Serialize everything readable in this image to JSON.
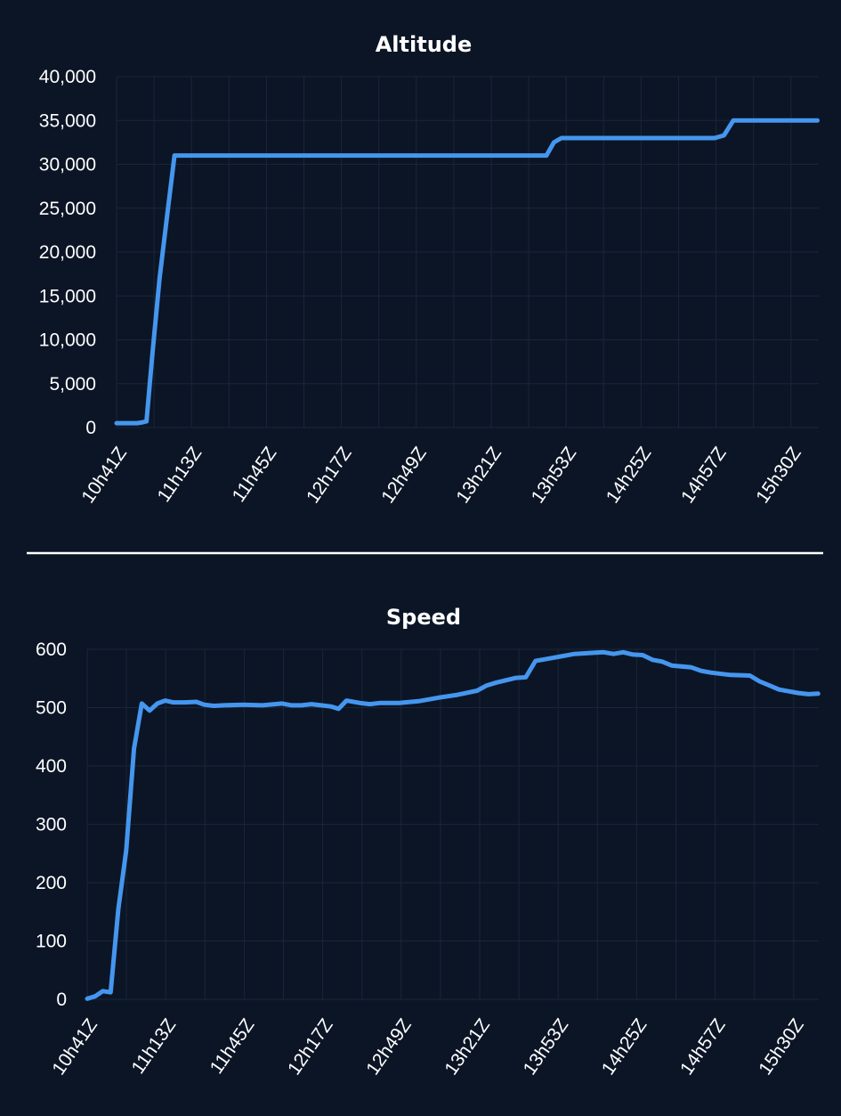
{
  "colors": {
    "background": "#0b1526",
    "line": "#4596ee",
    "grid": "#1a2638",
    "divider": "#ffffff",
    "text": "#ffffff"
  },
  "chart_data": [
    {
      "type": "line",
      "title": "Altitude",
      "xlabel": "",
      "ylabel": "",
      "ylim": [
        0,
        40000
      ],
      "yticks": [
        "0",
        "5,000",
        "10,000",
        "15,000",
        "20,000",
        "25,000",
        "30,000",
        "35,000",
        "40,000"
      ],
      "categories": [
        "10h41Z",
        "11h13Z",
        "11h45Z",
        "12h17Z",
        "12h49Z",
        "13h21Z",
        "13h53Z",
        "14h25Z",
        "14h57Z",
        "15h30Z"
      ],
      "grid": true,
      "series": [
        {
          "values": [
            [
              0,
              500
            ],
            [
              1.1,
              500
            ],
            [
              1.4,
              600
            ],
            [
              1.6,
              700
            ],
            [
              1.9,
              8000
            ],
            [
              2.3,
              17000
            ],
            [
              2.75,
              25000
            ],
            [
              3.1,
              31000
            ],
            [
              3.5,
              31000
            ],
            [
              5,
              31000
            ],
            [
              8,
              31000
            ],
            [
              11,
              31000
            ],
            [
              14,
              31000
            ],
            [
              17,
              31000
            ],
            [
              20,
              31000
            ],
            [
              22,
              31000
            ],
            [
              23,
              31000
            ],
            [
              23.4,
              32500
            ],
            [
              23.8,
              33000
            ],
            [
              25,
              33000
            ],
            [
              28,
              33000
            ],
            [
              30,
              33000
            ],
            [
              31.5,
              33000
            ],
            [
              32,
              33000
            ],
            [
              32.5,
              33300
            ],
            [
              33,
              35000
            ],
            [
              34,
              35000
            ],
            [
              36,
              35000
            ],
            [
              37.5,
              35000
            ]
          ]
        }
      ]
    },
    {
      "type": "line",
      "title": "Speed",
      "xlabel": "",
      "ylabel": "",
      "ylim": [
        0,
        600
      ],
      "yticks": [
        "0",
        "100",
        "200",
        "300",
        "400",
        "500",
        "600"
      ],
      "categories": [
        "10h41Z",
        "11h13Z",
        "11h45Z",
        "12h17Z",
        "12h49Z",
        "13h21Z",
        "13h53Z",
        "14h25Z",
        "14h57Z",
        "15h30Z"
      ],
      "grid": true,
      "series": [
        {
          "values": [
            [
              0,
              1
            ],
            [
              0.4,
              5
            ],
            [
              0.8,
              14
            ],
            [
              1.2,
              12
            ],
            [
              1.6,
              155
            ],
            [
              2.0,
              255
            ],
            [
              2.4,
              430
            ],
            [
              2.8,
              507
            ],
            [
              3.2,
              495
            ],
            [
              3.6,
              507
            ],
            [
              4.0,
              512
            ],
            [
              4.4,
              509
            ],
            [
              5,
              509
            ],
            [
              5.6,
              510
            ],
            [
              6,
              505
            ],
            [
              6.5,
              503
            ],
            [
              7,
              504
            ],
            [
              8,
              505
            ],
            [
              9,
              504
            ],
            [
              10,
              507
            ],
            [
              10.5,
              504
            ],
            [
              11,
              504
            ],
            [
              11.5,
              506
            ],
            [
              12,
              504
            ],
            [
              12.5,
              502
            ],
            [
              12.9,
              498
            ],
            [
              13.3,
              512
            ],
            [
              14,
              508
            ],
            [
              14.5,
              506
            ],
            [
              15,
              508
            ],
            [
              16,
              508
            ],
            [
              17,
              511
            ],
            [
              18,
              517
            ],
            [
              19,
              522
            ],
            [
              20,
              529
            ],
            [
              20.5,
              538
            ],
            [
              21,
              543
            ],
            [
              22,
              551
            ],
            [
              22.5,
              552
            ],
            [
              23,
              580
            ],
            [
              24,
              586
            ],
            [
              25,
              592
            ],
            [
              26,
              594
            ],
            [
              26.5,
              595
            ],
            [
              27,
              592
            ],
            [
              27.5,
              595
            ],
            [
              28,
              591
            ],
            [
              28.5,
              590
            ],
            [
              29,
              582
            ],
            [
              29.5,
              579
            ],
            [
              30,
              572
            ],
            [
              31,
              569
            ],
            [
              31.5,
              563
            ],
            [
              32,
              560
            ],
            [
              33,
              556
            ],
            [
              34,
              555
            ],
            [
              34.5,
              545
            ],
            [
              35,
              538
            ],
            [
              35.5,
              531
            ],
            [
              36,
              528
            ],
            [
              36.5,
              525
            ],
            [
              37,
              523
            ],
            [
              37.5,
              524
            ]
          ]
        }
      ]
    }
  ]
}
